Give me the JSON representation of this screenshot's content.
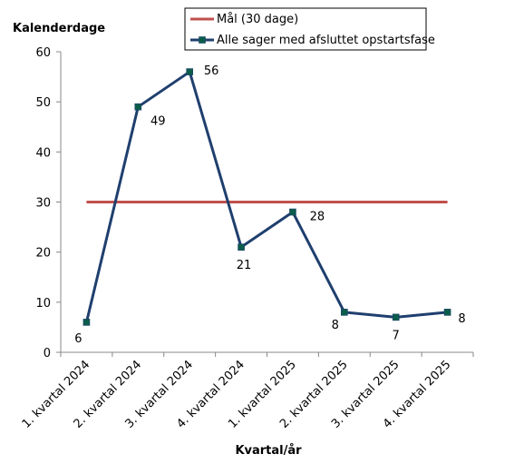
{
  "chart_data": {
    "type": "line",
    "ylabel": "Kalenderdage",
    "xlabel": "Kvartal/år",
    "ylim": [
      0,
      60
    ],
    "yticks": [
      0,
      10,
      20,
      30,
      40,
      50,
      60
    ],
    "categories": [
      "1. kvartal 2024",
      "2. kvartal 2024",
      "3. kvartal 2024",
      "4. kvartal 2024",
      "1. kvartal 2025",
      "2. kvartal 2025",
      "3. kvartal 2025",
      "4. kvartal 2025"
    ],
    "series": [
      {
        "name": "Mål (30 dage)",
        "values": [
          30,
          30,
          30,
          30,
          30,
          30,
          30,
          30
        ],
        "color": "#C0504D",
        "marker": "none"
      },
      {
        "name": "Alle sager med afsluttet opstartsfase",
        "values": [
          6,
          49,
          56,
          21,
          28,
          8,
          7,
          8
        ],
        "color": "#1F3F6E",
        "marker": "square",
        "marker_color": "#0B5D4A",
        "data_labels": true
      }
    ],
    "grid": false,
    "legend_position": "top"
  }
}
